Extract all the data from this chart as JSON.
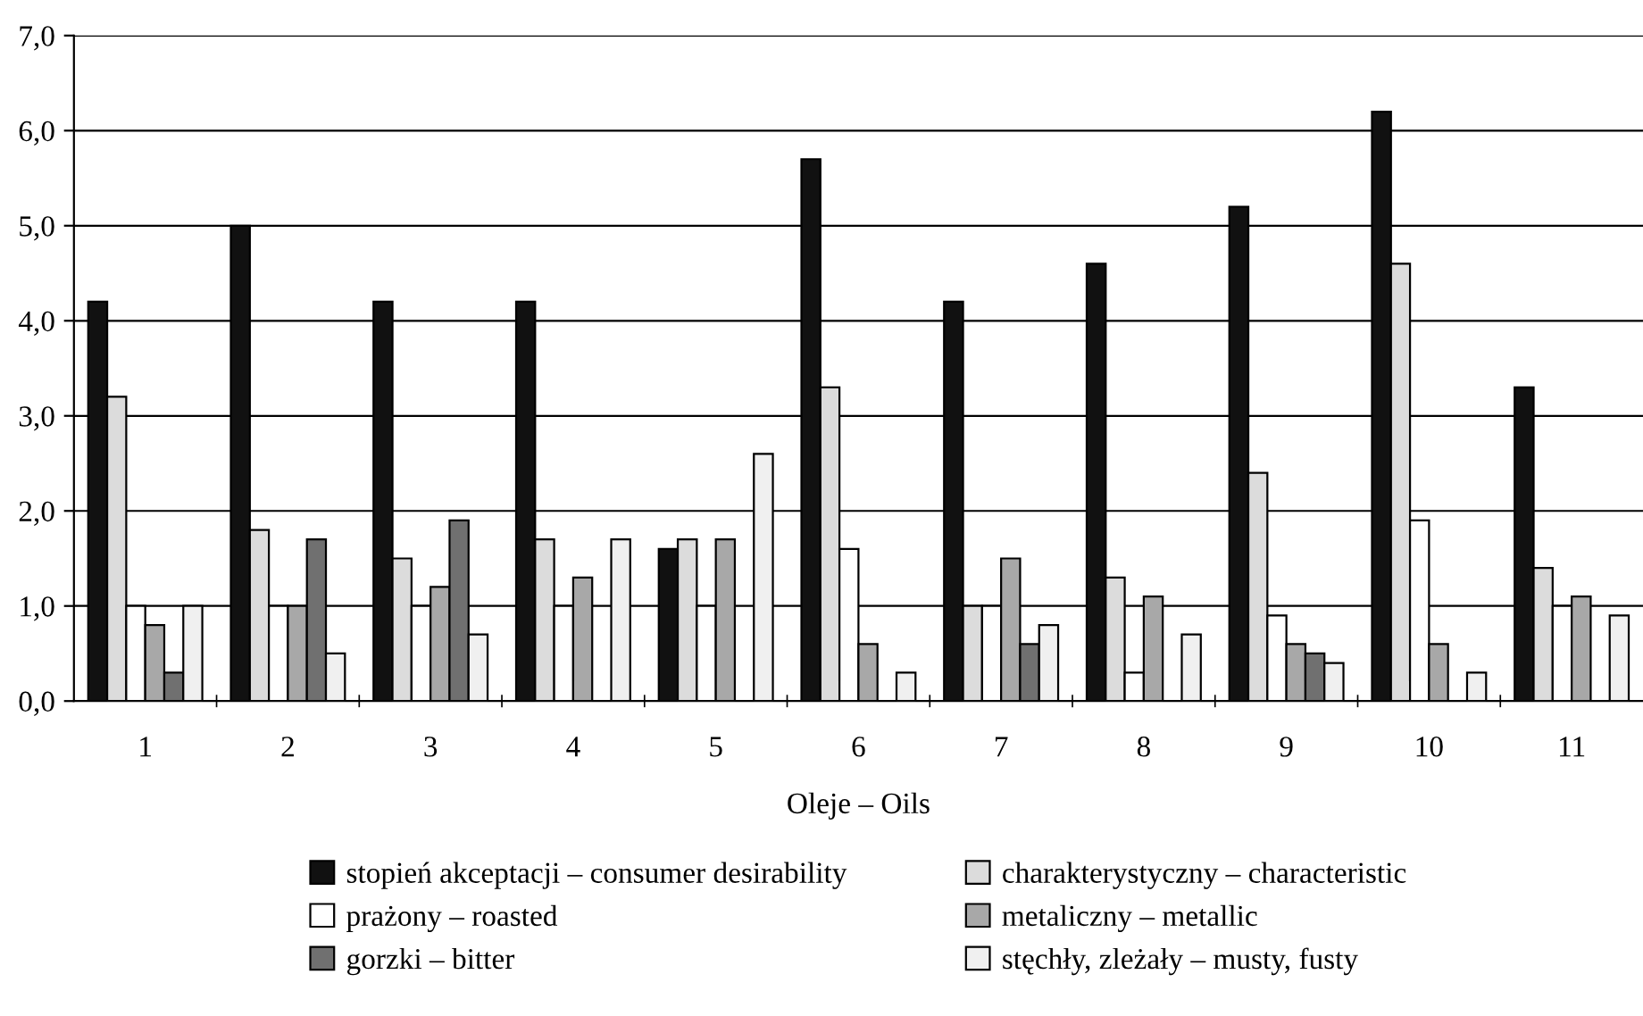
{
  "chart_data": {
    "type": "bar",
    "xlabel": "Oleje – Oils",
    "categories": [
      "1",
      "2",
      "3",
      "4",
      "5",
      "6",
      "7",
      "8",
      "9",
      "10",
      "11"
    ],
    "series": [
      {
        "name": "stopień akceptacji – consumer desirability",
        "color": "#111111",
        "values": [
          4.2,
          5.0,
          4.2,
          4.2,
          1.6,
          5.7,
          4.2,
          4.6,
          5.2,
          6.2,
          3.3
        ]
      },
      {
        "name": "charakterystyczny – characteristic",
        "color": "#dcdcdc",
        "values": [
          3.2,
          1.8,
          1.5,
          1.7,
          1.7,
          3.3,
          1.0,
          1.3,
          2.4,
          4.6,
          1.4
        ]
      },
      {
        "name": "prażony – roasted",
        "color": "#ffffff",
        "values": [
          1.0,
          1.0,
          1.0,
          1.0,
          1.0,
          1.6,
          1.0,
          0.3,
          0.9,
          1.9,
          1.0
        ]
      },
      {
        "name": "metaliczny – metallic",
        "color": "#a8a8a8",
        "values": [
          0.8,
          1.0,
          1.2,
          1.3,
          1.7,
          0.6,
          1.5,
          1.1,
          0.6,
          0.6,
          1.1
        ]
      },
      {
        "name": "gorzki – bitter",
        "color": "#707070",
        "values": [
          0.3,
          1.7,
          1.9,
          null,
          null,
          null,
          0.6,
          null,
          0.5,
          null,
          null
        ]
      },
      {
        "name": "stęchły, zleżały – musty, fusty",
        "color": "#f0f0f0",
        "values": [
          1.0,
          0.5,
          0.7,
          1.7,
          2.6,
          0.3,
          0.8,
          0.7,
          0.4,
          0.3,
          0.9
        ]
      }
    ],
    "ylim": [
      0,
      7
    ],
    "yticks": [
      {
        "value": 0,
        "label": "0,0"
      },
      {
        "value": 1,
        "label": "1,0"
      },
      {
        "value": 2,
        "label": "2,0"
      },
      {
        "value": 3,
        "label": "3,0"
      },
      {
        "value": 4,
        "label": "4,0"
      },
      {
        "value": 5,
        "label": "5,0"
      },
      {
        "value": 6,
        "label": "6,0"
      },
      {
        "value": 7,
        "label": "7,0"
      }
    ],
    "grid": "y",
    "legend": "bottom"
  }
}
